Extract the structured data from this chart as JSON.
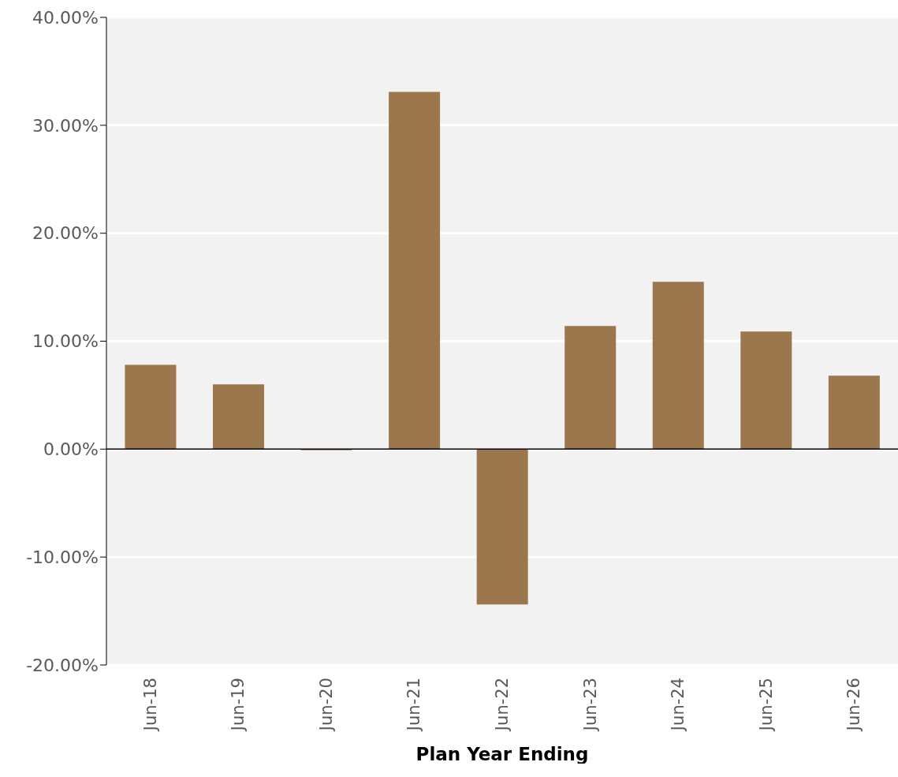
{
  "chart_data": {
    "type": "bar",
    "xlabel": "Plan Year Ending",
    "categories": [
      "Jun-18",
      "Jun-19",
      "Jun-20",
      "Jun-21",
      "Jun-22",
      "Jun-23",
      "Jun-24",
      "Jun-25",
      "Jun-26"
    ],
    "values": [
      7.8,
      6.0,
      -0.1,
      33.1,
      -14.4,
      11.4,
      15.5,
      10.9,
      6.8
    ],
    "color": "#9c764c",
    "ylim": [
      -20,
      40
    ],
    "yticks": [
      {
        "value": -20,
        "label": "-20.00%"
      },
      {
        "value": -10,
        "label": "-10.00%"
      },
      {
        "value": 0,
        "label": "0.00%"
      },
      {
        "value": 10,
        "label": "10.00%"
      },
      {
        "value": 20,
        "label": "20.00%"
      },
      {
        "value": 30,
        "label": "30.00%"
      },
      {
        "value": 40,
        "label": "40.00%"
      }
    ],
    "grid": "y"
  }
}
